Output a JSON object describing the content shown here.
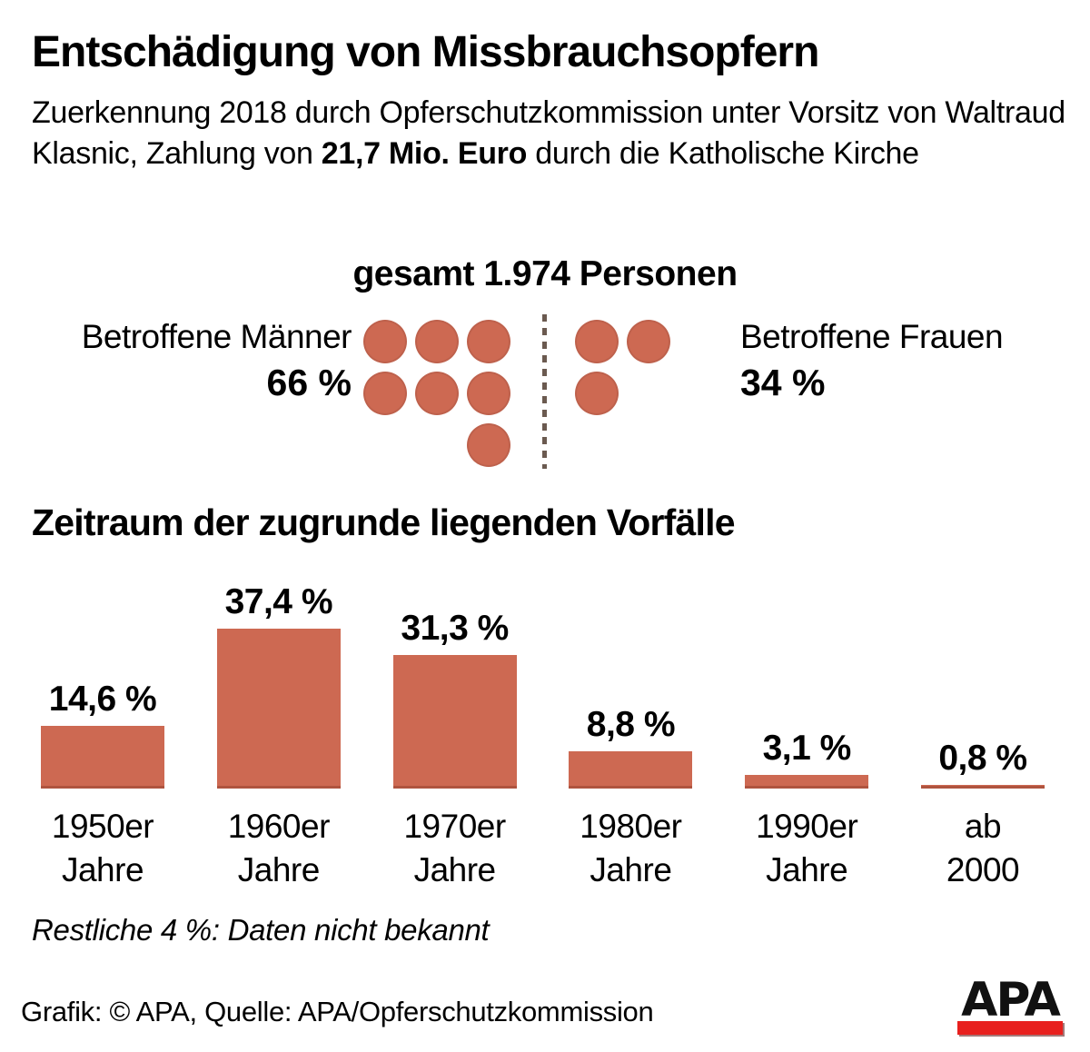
{
  "title": "Entschädigung von Missbrauchsopfern",
  "subtitle": {
    "line1": "Zuerkennung 2018 durch Opferschutzkommission unter Vorsitz",
    "line2_pre": "von Waltraud Klasnic, Zahlung von ",
    "line2_bold": "21,7 Mio. Euro",
    "line2_post": " durch die",
    "line3": "Katholische Kirche"
  },
  "pictogram": {
    "header": "gesamt 1.974 Personen",
    "male": {
      "label": "Betroffene Männer",
      "value": "66 %",
      "circle_rows": [
        [
          0,
          1,
          2
        ],
        [
          0,
          1,
          2
        ],
        [
          2
        ]
      ]
    },
    "female": {
      "label": "Betroffene Frauen",
      "value": "34 %",
      "circle_rows": [
        [
          0,
          1
        ],
        [
          0
        ]
      ]
    }
  },
  "section_heading": "Zeitraum der zugrunde liegenden Vorfälle",
  "chart_data": [
    {
      "type": "pie",
      "title": "gesamt 1.974 Personen",
      "labels": [
        "Betroffene Männer",
        "Betroffene Frauen"
      ],
      "values": [
        66,
        34
      ],
      "unit": "%",
      "total_persons": 1974
    },
    {
      "type": "bar",
      "title": "Zeitraum der zugrunde liegenden Vorfälle",
      "categories": [
        "1950er Jahre",
        "1960er Jahre",
        "1970er Jahre",
        "1980er Jahre",
        "1990er Jahre",
        "ab 2000"
      ],
      "category_lines": [
        [
          "1950er",
          "Jahre"
        ],
        [
          "1960er",
          "Jahre"
        ],
        [
          "1970er",
          "Jahre"
        ],
        [
          "1980er",
          "Jahre"
        ],
        [
          "1990er",
          "Jahre"
        ],
        [
          "ab",
          "2000"
        ]
      ],
      "values": [
        14.6,
        37.4,
        31.3,
        8.8,
        3.1,
        0.8
      ],
      "value_labels": [
        "14,6 %",
        "37,4 %",
        "31,3 %",
        "8,8 %",
        "3,1 %",
        "0,8 %"
      ],
      "ylim": [
        0,
        40
      ],
      "grid": false,
      "legend": false,
      "bar_color": "#cd6952",
      "note": "Restliche 4 %: Daten nicht bekannt"
    }
  ],
  "note": "Restliche 4 %: Daten nicht bekannt",
  "footer": {
    "credit": "Grafik: © APA, Quelle: APA/Opferschutzkommission",
    "logo_text": "APA"
  },
  "colors": {
    "accent": "#cd6952",
    "divider": "#6b5a50",
    "logo_red": "#e8201e",
    "text": "#000000"
  }
}
